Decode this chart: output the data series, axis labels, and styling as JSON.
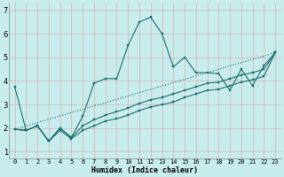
{
  "xlabel": "Humidex (Indice chaleur)",
  "bg_color": "#c8ecec",
  "line_color": "#1a7070",
  "grid_color": "#e0b8b8",
  "grid_bg": "#c8ecec",
  "xlim": [
    -0.5,
    23.5
  ],
  "ylim": [
    0.7,
    7.3
  ],
  "xtick_labels": [
    "0",
    "1",
    "2",
    "3",
    "4",
    "5",
    "6",
    "7",
    "8",
    "9",
    "10",
    "11",
    "12",
    "13",
    "14",
    "15",
    "16",
    "17",
    "18",
    "19",
    "20",
    "21",
    "22",
    "23"
  ],
  "yticks": [
    1,
    2,
    3,
    4,
    5,
    6,
    7
  ],
  "lines": [
    {
      "x": [
        0,
        1,
        2,
        3,
        4,
        5,
        6,
        7,
        8,
        9,
        10,
        11,
        12,
        13,
        14,
        15,
        16,
        17,
        18,
        19,
        20,
        21,
        22,
        23
      ],
      "y": [
        3.75,
        1.9,
        2.1,
        1.45,
        2.0,
        1.6,
        2.5,
        3.9,
        4.1,
        4.1,
        5.5,
        6.5,
        6.7,
        6.0,
        4.6,
        5.0,
        4.35,
        4.35,
        4.3,
        3.6,
        4.5,
        3.8,
        4.65,
        5.2
      ],
      "style": "solid"
    },
    {
      "x": [
        0,
        23
      ],
      "y": [
        1.95,
        5.2
      ],
      "style": "dotted"
    },
    {
      "x": [
        0,
        1,
        2,
        3,
        4,
        5,
        6,
        7,
        8,
        9,
        10,
        11,
        12,
        13,
        14,
        15,
        16,
        17,
        18,
        19,
        20,
        21,
        22,
        23
      ],
      "y": [
        1.95,
        1.9,
        2.1,
        1.45,
        2.0,
        1.6,
        2.1,
        2.35,
        2.55,
        2.7,
        2.85,
        3.05,
        3.2,
        3.3,
        3.45,
        3.6,
        3.75,
        3.9,
        3.95,
        4.1,
        4.25,
        4.35,
        4.5,
        5.2
      ],
      "style": "solid"
    },
    {
      "x": [
        0,
        1,
        2,
        3,
        4,
        5,
        6,
        7,
        8,
        9,
        10,
        11,
        12,
        13,
        14,
        15,
        16,
        17,
        18,
        19,
        20,
        21,
        22,
        23
      ],
      "y": [
        1.95,
        1.9,
        2.1,
        1.45,
        1.9,
        1.55,
        1.9,
        2.1,
        2.3,
        2.4,
        2.55,
        2.75,
        2.9,
        3.0,
        3.1,
        3.3,
        3.45,
        3.6,
        3.65,
        3.8,
        3.95,
        4.05,
        4.2,
        5.2
      ],
      "style": "solid"
    }
  ]
}
